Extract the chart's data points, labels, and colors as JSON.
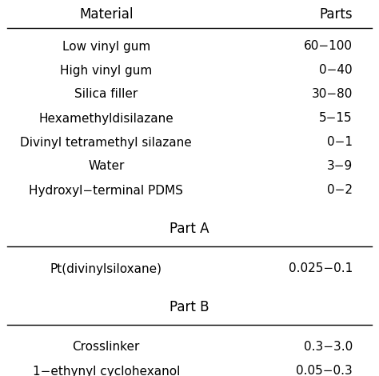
{
  "header": [
    "Material",
    "Parts"
  ],
  "rows": [
    [
      "Low vinyl gum",
      "60−100"
    ],
    [
      "High vinyl gum",
      "0−40"
    ],
    [
      "Silica filler",
      "30−80"
    ],
    [
      "Hexamethyldisilazane",
      "5−15"
    ],
    [
      "Divinyl tetramethyl silazane",
      "0−1"
    ],
    [
      "Water",
      "3−9"
    ],
    [
      "Hydroxyl−terminal PDMS",
      "0−2"
    ]
  ],
  "section_a_label": "Part A",
  "section_a_rows": [
    [
      "Pt(divinylsiloxane)",
      "0.025−0.1"
    ]
  ],
  "section_b_label": "Part B",
  "section_b_rows": [
    [
      "Crosslinker",
      "0.3−3.0"
    ],
    [
      "1−ethynyl cyclohexanol",
      "0.05−0.3"
    ]
  ],
  "bg_color": "#ffffff",
  "text_color": "#000000",
  "line_color": "#000000",
  "font_size": 11.0,
  "header_font_size": 12.0,
  "fig_width": 4.74,
  "fig_height": 4.7,
  "dpi": 100
}
